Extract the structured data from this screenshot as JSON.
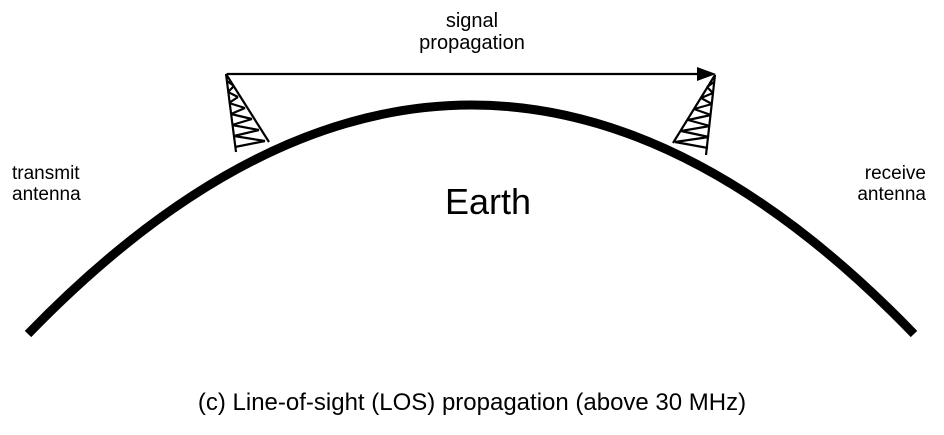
{
  "diagram": {
    "signal_label": [
      "signal",
      "propagation"
    ],
    "transmit_label": [
      "transmit",
      "antenna"
    ],
    "receive_label": [
      "receive",
      "antenna"
    ],
    "earth_label": "Earth",
    "caption": "(c) Line-of-sight (LOS) propagation (above 30 MHz)",
    "stroke_color": "#000000",
    "background_color": "#ffffff",
    "icons": [
      "transmit-antenna-tower-icon",
      "receive-antenna-tower-icon",
      "arrowhead-icon"
    ]
  }
}
